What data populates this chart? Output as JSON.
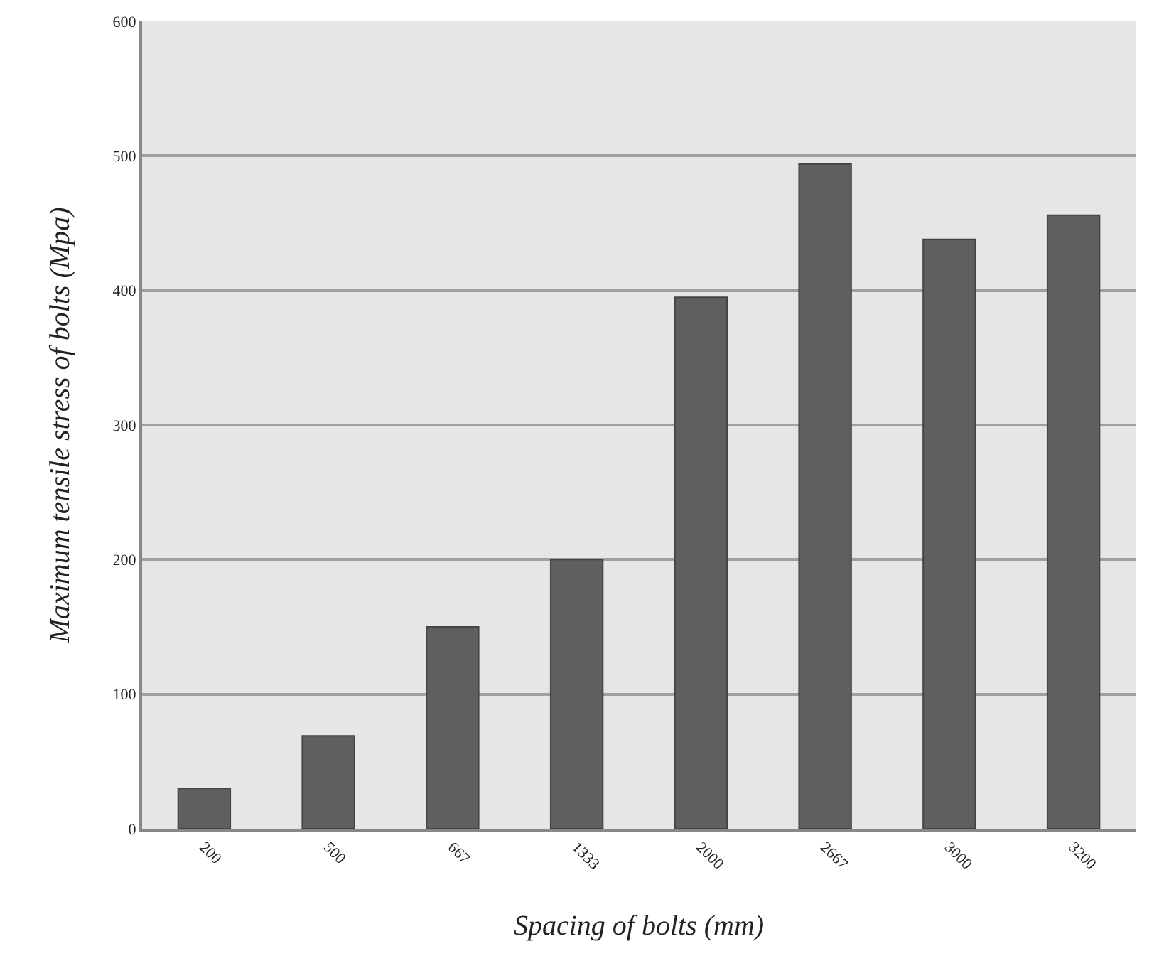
{
  "chart_data": {
    "type": "bar",
    "xlabel": "Spacing of bolts (mm)",
    "ylabel": "Maximum tensile stress of bolts (Mpa)",
    "categories": [
      "200",
      "500",
      "667",
      "1333",
      "2000",
      "2667",
      "3000",
      "3200"
    ],
    "values": [
      30,
      69,
      150,
      200,
      395,
      494,
      438,
      456
    ],
    "color": "#5f5f5f",
    "ylim": [
      0,
      600
    ],
    "yticks": [
      0,
      100,
      200,
      300,
      400,
      500,
      600
    ],
    "grid": "y"
  }
}
